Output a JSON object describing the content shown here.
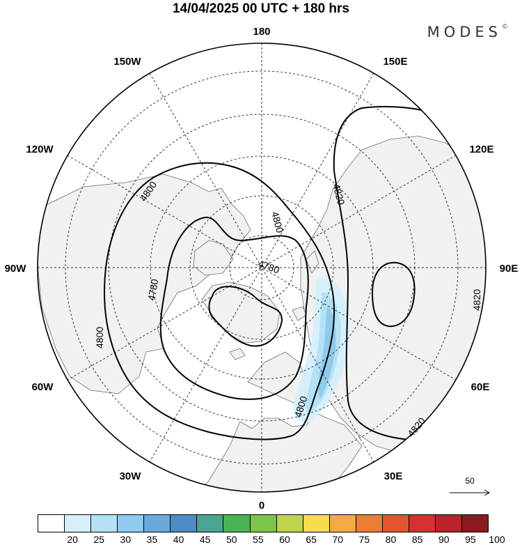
{
  "title": "14/04/2025  00 UTC  + 180 hrs",
  "brand": {
    "text": "MODES",
    "mark": "©"
  },
  "longitude_labels": {
    "top": "180",
    "bottom": "0",
    "upper_left": "150W",
    "upper_right": "150E",
    "mid_upper_left": "120W",
    "mid_upper_right": "120E",
    "left": "90W",
    "right": "90E",
    "mid_lower_left": "60W",
    "mid_lower_right": "60E",
    "lower_left": "30W",
    "lower_right": "30E"
  },
  "contours": {
    "label_4780_a": "4780",
    "label_4780_b": "4780",
    "label_4800_a": "4800",
    "label_4800_b": "4800",
    "label_4800_c": "4800",
    "label_4800_d": "4800",
    "label_4820_a": "4820",
    "label_4820_b": "4820",
    "label_4820_c": "4820"
  },
  "reference_vector": "50",
  "colorbar": {
    "labels": [
      "20",
      "25",
      "30",
      "35",
      "40",
      "45",
      "50",
      "55",
      "60",
      "65",
      "70",
      "75",
      "80",
      "85",
      "90",
      "95",
      "100"
    ],
    "colors": [
      "#ffffff",
      "#d6f0fb",
      "#b5e1f5",
      "#8ecbee",
      "#6aa9dc",
      "#4d8cc5",
      "#49a58f",
      "#4bb354",
      "#7dc44b",
      "#bfd44a",
      "#f7dc4f",
      "#f4a946",
      "#ee7b38",
      "#e25531",
      "#d73030",
      "#b8242a",
      "#8b1a1e"
    ]
  },
  "colors": {
    "land": "#f1f1f1",
    "coast": "#6e6e6e",
    "contour": "#000000",
    "wind_shade": "#b5e1f5"
  }
}
